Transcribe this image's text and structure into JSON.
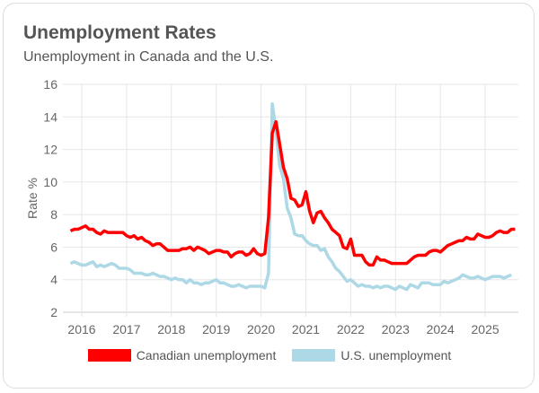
{
  "chart_data": {
    "type": "line",
    "title": "Unemployment Rates",
    "subtitle": "Unemployment in Canada and the U.S.",
    "xlabel": "",
    "ylabel": "Rate %",
    "ylim": [
      2,
      16
    ],
    "yticks": [
      2,
      4,
      6,
      8,
      10,
      12,
      14,
      16
    ],
    "xticks": [
      "2016",
      "2017",
      "2018",
      "2019",
      "2020",
      "2021",
      "2022",
      "2023",
      "2024",
      "2025"
    ],
    "start": "2015-10",
    "frequency": "monthly",
    "grid": true,
    "legend_position": "bottom",
    "series": [
      {
        "name": "Canadian unemployment",
        "color": "#ff0000",
        "values": [
          7.0,
          7.1,
          7.1,
          7.2,
          7.3,
          7.1,
          7.1,
          6.9,
          6.8,
          7.0,
          6.9,
          6.9,
          6.9,
          6.9,
          6.9,
          6.7,
          6.6,
          6.7,
          6.5,
          6.6,
          6.4,
          6.3,
          6.1,
          6.2,
          6.2,
          6.0,
          5.8,
          5.8,
          5.8,
          5.8,
          5.9,
          5.9,
          6.0,
          5.8,
          6.0,
          5.9,
          5.8,
          5.6,
          5.7,
          5.8,
          5.8,
          5.7,
          5.7,
          5.4,
          5.6,
          5.7,
          5.7,
          5.5,
          5.6,
          5.9,
          5.6,
          5.5,
          5.6,
          7.8,
          13.0,
          13.7,
          12.3,
          10.9,
          10.2,
          9.0,
          8.9,
          8.5,
          8.6,
          9.4,
          8.2,
          7.5,
          8.1,
          8.2,
          7.8,
          7.5,
          7.1,
          6.9,
          6.7,
          6.0,
          5.9,
          6.5,
          5.5,
          5.5,
          5.5,
          5.1,
          4.9,
          4.9,
          5.4,
          5.2,
          5.2,
          5.1,
          5.0,
          5.0,
          5.0,
          5.0,
          5.0,
          5.2,
          5.4,
          5.5,
          5.5,
          5.5,
          5.7,
          5.8,
          5.8,
          5.7,
          5.9,
          6.1,
          6.2,
          6.3,
          6.4,
          6.4,
          6.6,
          6.5,
          6.5,
          6.8,
          6.7,
          6.6,
          6.6,
          6.7,
          6.9,
          7.0,
          6.9,
          6.9,
          7.1,
          7.1
        ]
      },
      {
        "name": "U.S. unemployment",
        "color": "#add8e6",
        "values": [
          5.0,
          5.1,
          5.0,
          4.9,
          4.9,
          5.0,
          5.1,
          4.8,
          4.9,
          4.8,
          4.9,
          5.0,
          4.9,
          4.7,
          4.7,
          4.7,
          4.6,
          4.4,
          4.4,
          4.4,
          4.3,
          4.3,
          4.4,
          4.3,
          4.2,
          4.2,
          4.1,
          4.0,
          4.1,
          4.0,
          4.0,
          3.8,
          4.0,
          3.8,
          3.8,
          3.7,
          3.8,
          3.8,
          3.9,
          4.0,
          3.8,
          3.8,
          3.7,
          3.6,
          3.6,
          3.7,
          3.6,
          3.5,
          3.6,
          3.6,
          3.6,
          3.6,
          3.5,
          4.4,
          14.8,
          13.2,
          11.0,
          10.2,
          8.4,
          7.8,
          6.8,
          6.7,
          6.7,
          6.4,
          6.2,
          6.1,
          6.1,
          5.8,
          5.9,
          5.4,
          5.1,
          4.7,
          4.5,
          4.2,
          3.9,
          4.0,
          3.8,
          3.6,
          3.7,
          3.6,
          3.6,
          3.5,
          3.6,
          3.5,
          3.6,
          3.6,
          3.5,
          3.4,
          3.6,
          3.5,
          3.4,
          3.7,
          3.6,
          3.5,
          3.8,
          3.8,
          3.8,
          3.7,
          3.7,
          3.7,
          3.9,
          3.8,
          3.9,
          4.0,
          4.1,
          4.3,
          4.2,
          4.1,
          4.1,
          4.2,
          4.1,
          4.0,
          4.1,
          4.2,
          4.2,
          4.2,
          4.1,
          4.2,
          4.3
        ]
      }
    ]
  }
}
